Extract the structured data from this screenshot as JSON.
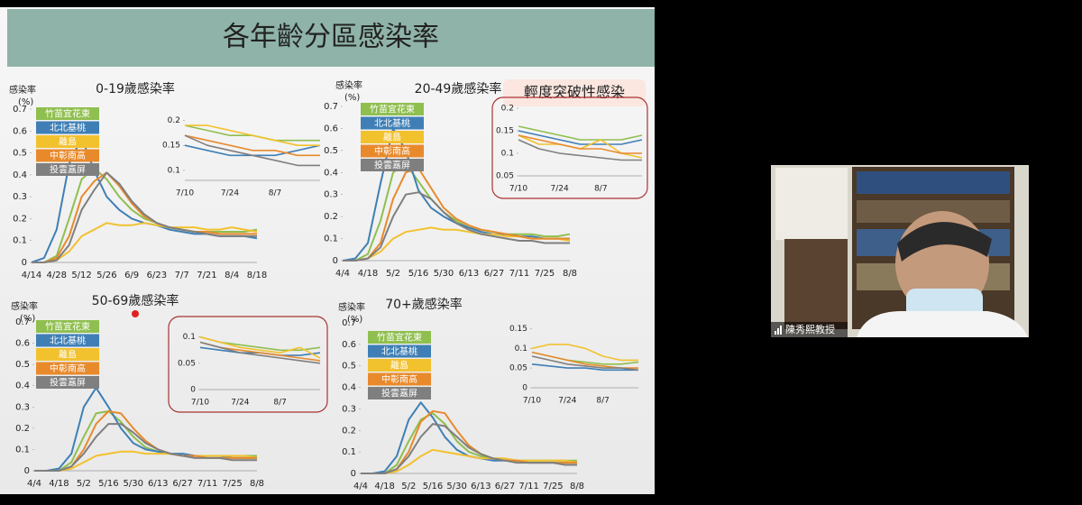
{
  "slide_title": "各年齡分區感染率",
  "callout": "輕度突破性感染",
  "participant": "陳秀熙教授",
  "chart_data": [
    {
      "type": "line",
      "title": "0-19歲感染率",
      "ylabel": "感染率",
      "yunit": "(%)",
      "categories": [
        "4/14",
        null,
        "4/28",
        null,
        "5/12",
        null,
        "5/26",
        null,
        "6/9",
        null,
        "6/23",
        null,
        "7/7",
        null,
        "7/21",
        null,
        "8/4",
        null,
        "8/18"
      ],
      "ylim": [
        0,
        0.7
      ],
      "yticks": [
        0,
        0.1,
        0.2,
        0.3,
        0.4,
        0.5,
        0.6,
        0.7
      ],
      "series": [
        {
          "name": "竹苗宜花東",
          "color": "#8fbf4f",
          "values": [
            0,
            0,
            0.03,
            0.2,
            0.38,
            0.43,
            0.38,
            0.3,
            0.24,
            0.2,
            0.18,
            0.16,
            0.15,
            0.14,
            0.14,
            0.14,
            0.14,
            0.14,
            0.15
          ]
        },
        {
          "name": "北北基桃",
          "color": "#3f7fb5",
          "values": [
            0,
            0.02,
            0.15,
            0.45,
            0.57,
            0.42,
            0.3,
            0.24,
            0.2,
            0.18,
            0.17,
            0.15,
            0.14,
            0.13,
            0.13,
            0.12,
            0.12,
            0.12,
            0.11
          ]
        },
        {
          "name": "離島",
          "color": "#f2c12e",
          "values": [
            0,
            0,
            0.01,
            0.05,
            0.12,
            0.15,
            0.18,
            0.17,
            0.17,
            0.18,
            0.17,
            0.16,
            0.16,
            0.16,
            0.15,
            0.15,
            0.16,
            0.15,
            0.14
          ]
        },
        {
          "name": "中彰南高",
          "color": "#e88a2c",
          "values": [
            0,
            0,
            0.02,
            0.12,
            0.3,
            0.37,
            0.41,
            0.35,
            0.27,
            0.21,
            0.18,
            0.16,
            0.15,
            0.14,
            0.14,
            0.13,
            0.13,
            0.13,
            0.13
          ]
        },
        {
          "name": "投雲嘉屏",
          "color": "#7f7f7f",
          "values": [
            0,
            0,
            0.01,
            0.08,
            0.24,
            0.33,
            0.41,
            0.36,
            0.28,
            0.22,
            0.18,
            0.16,
            0.15,
            0.14,
            0.13,
            0.12,
            0.12,
            0.12,
            0.12
          ]
        }
      ]
    },
    {
      "type": "line",
      "title": "20-49歲感染率",
      "ylabel": "感染率",
      "yunit": "(%)",
      "categories": [
        "4/4",
        null,
        "4/18",
        null,
        "5/2",
        null,
        "5/16",
        null,
        "5/30",
        null,
        "6/13",
        null,
        "6/27",
        null,
        "7/11",
        null,
        "7/25",
        null,
        "8/8"
      ],
      "ylim": [
        0,
        0.7
      ],
      "yticks": [
        0,
        0.1,
        0.2,
        0.3,
        0.4,
        0.5,
        0.6,
        0.7
      ],
      "series": [
        {
          "name": "竹苗宜花東",
          "color": "#8fbf4f",
          "values": [
            0,
            0,
            0.03,
            0.18,
            0.4,
            0.44,
            0.36,
            0.28,
            0.22,
            0.18,
            0.15,
            0.14,
            0.13,
            0.12,
            0.12,
            0.12,
            0.11,
            0.11,
            0.12
          ]
        },
        {
          "name": "北北基桃",
          "color": "#3f7fb5",
          "values": [
            0,
            0.01,
            0.08,
            0.35,
            0.6,
            0.5,
            0.32,
            0.24,
            0.2,
            0.17,
            0.15,
            0.13,
            0.12,
            0.12,
            0.11,
            0.11,
            0.1,
            0.1,
            0.1
          ]
        },
        {
          "name": "離島",
          "color": "#f2c12e",
          "values": [
            0,
            0,
            0.01,
            0.04,
            0.1,
            0.13,
            0.14,
            0.15,
            0.14,
            0.14,
            0.13,
            0.12,
            0.12,
            0.11,
            0.11,
            0.1,
            0.1,
            0.1,
            0.09
          ]
        },
        {
          "name": "中彰南高",
          "color": "#e88a2c",
          "values": [
            0,
            0,
            0.01,
            0.08,
            0.28,
            0.4,
            0.42,
            0.33,
            0.24,
            0.19,
            0.16,
            0.14,
            0.13,
            0.12,
            0.11,
            0.1,
            0.1,
            0.1,
            0.1
          ]
        },
        {
          "name": "投雲嘉屏",
          "color": "#7f7f7f",
          "values": [
            0,
            0,
            0.01,
            0.06,
            0.2,
            0.3,
            0.31,
            0.28,
            0.22,
            0.17,
            0.14,
            0.12,
            0.11,
            0.1,
            0.09,
            0.09,
            0.08,
            0.08,
            0.08
          ]
        }
      ]
    },
    {
      "type": "line",
      "title": "50-69歲感染率",
      "ylabel": "感染率",
      "yunit": "(%)",
      "categories": [
        "4/4",
        null,
        "4/18",
        null,
        "5/2",
        null,
        "5/16",
        null,
        "5/30",
        null,
        "6/13",
        null,
        "6/27",
        null,
        "7/11",
        null,
        "7/25",
        null,
        "8/8"
      ],
      "ylim": [
        0,
        0.7
      ],
      "yticks": [
        0,
        0.1,
        0.2,
        0.3,
        0.4,
        0.5,
        0.6,
        0.7
      ],
      "series": [
        {
          "name": "竹苗宜花東",
          "color": "#8fbf4f",
          "values": [
            0,
            0,
            0,
            0.04,
            0.16,
            0.27,
            0.28,
            0.23,
            0.16,
            0.11,
            0.09,
            0.08,
            0.07,
            0.07,
            0.07,
            0.07,
            0.07,
            0.07,
            0.07
          ]
        },
        {
          "name": "北北基桃",
          "color": "#3f7fb5",
          "values": [
            0,
            0,
            0.01,
            0.08,
            0.3,
            0.39,
            0.3,
            0.2,
            0.13,
            0.1,
            0.09,
            0.08,
            0.08,
            0.07,
            0.07,
            0.07,
            0.06,
            0.06,
            0.06
          ]
        },
        {
          "name": "離島",
          "color": "#f2c12e",
          "values": [
            0,
            0,
            0,
            0.01,
            0.04,
            0.07,
            0.08,
            0.09,
            0.09,
            0.08,
            0.08,
            0.08,
            0.07,
            0.07,
            0.07,
            0.07,
            0.07,
            0.07,
            0.06
          ]
        },
        {
          "name": "中彰南高",
          "color": "#e88a2c",
          "values": [
            0,
            0,
            0,
            0.02,
            0.1,
            0.22,
            0.28,
            0.27,
            0.2,
            0.14,
            0.1,
            0.08,
            0.07,
            0.07,
            0.06,
            0.06,
            0.06,
            0.06,
            0.06
          ]
        },
        {
          "name": "投雲嘉屏",
          "color": "#7f7f7f",
          "values": [
            0,
            0,
            0,
            0.02,
            0.08,
            0.16,
            0.22,
            0.22,
            0.18,
            0.13,
            0.1,
            0.08,
            0.07,
            0.06,
            0.06,
            0.06,
            0.05,
            0.05,
            0.05
          ]
        }
      ]
    },
    {
      "type": "line",
      "title": "70+歲感染率",
      "ylabel": "感染率",
      "yunit": "(%)",
      "categories": [
        "4/4",
        null,
        "4/18",
        null,
        "5/2",
        null,
        "5/16",
        null,
        "5/30",
        null,
        "6/13",
        null,
        "6/27",
        null,
        "7/11",
        null,
        "7/25",
        null,
        "8/8"
      ],
      "ylim": [
        0,
        0.7
      ],
      "yticks": [
        0,
        0.1,
        0.2,
        0.3,
        0.4,
        0.5,
        0.6,
        0.7
      ],
      "series": [
        {
          "name": "竹苗宜花東",
          "color": "#8fbf4f",
          "values": [
            0,
            0,
            0,
            0.04,
            0.15,
            0.25,
            0.28,
            0.23,
            0.15,
            0.1,
            0.08,
            0.07,
            0.06,
            0.06,
            0.06,
            0.06,
            0.06,
            0.06,
            0.06
          ]
        },
        {
          "name": "北北基桃",
          "color": "#3f7fb5",
          "values": [
            0,
            0,
            0.01,
            0.08,
            0.25,
            0.33,
            0.26,
            0.17,
            0.11,
            0.08,
            0.07,
            0.06,
            0.06,
            0.06,
            0.05,
            0.05,
            0.05,
            0.05,
            0.05
          ]
        },
        {
          "name": "離島",
          "color": "#f2c12e",
          "values": [
            0,
            0,
            0,
            0.01,
            0.04,
            0.08,
            0.11,
            0.1,
            0.09,
            0.08,
            0.07,
            0.07,
            0.07,
            0.06,
            0.06,
            0.06,
            0.06,
            0.06,
            0.05
          ]
        },
        {
          "name": "中彰南高",
          "color": "#e88a2c",
          "values": [
            0,
            0,
            0,
            0.02,
            0.1,
            0.24,
            0.29,
            0.28,
            0.2,
            0.13,
            0.09,
            0.07,
            0.06,
            0.06,
            0.05,
            0.05,
            0.05,
            0.05,
            0.05
          ]
        },
        {
          "name": "投雲嘉屏",
          "color": "#7f7f7f",
          "values": [
            0,
            0,
            0,
            0.02,
            0.08,
            0.17,
            0.23,
            0.22,
            0.17,
            0.12,
            0.09,
            0.07,
            0.06,
            0.05,
            0.05,
            0.05,
            0.05,
            0.04,
            0.04
          ]
        }
      ]
    },
    {
      "type": "line",
      "categories": [
        "7/10",
        null,
        "7/24",
        null,
        "8/7",
        null,
        null
      ],
      "ylim": [
        0.08,
        0.21
      ],
      "yticks": [
        0.1,
        0.15,
        0.2
      ],
      "series": [
        {
          "color": "#8fbf4f",
          "values": [
            0.19,
            0.18,
            0.17,
            0.17,
            0.16,
            0.16,
            0.16
          ]
        },
        {
          "color": "#3f7fb5",
          "values": [
            0.15,
            0.14,
            0.13,
            0.13,
            0.13,
            0.14,
            0.15
          ]
        },
        {
          "color": "#f2c12e",
          "values": [
            0.19,
            0.19,
            0.18,
            0.17,
            0.16,
            0.15,
            0.15
          ]
        },
        {
          "color": "#e88a2c",
          "values": [
            0.17,
            0.16,
            0.15,
            0.14,
            0.14,
            0.13,
            0.13
          ]
        },
        {
          "color": "#7f7f7f",
          "values": [
            0.17,
            0.15,
            0.14,
            0.13,
            0.12,
            0.11,
            0.11
          ]
        }
      ]
    },
    {
      "type": "line",
      "categories": [
        "7/10",
        null,
        "7/24",
        null,
        "8/7",
        null,
        null
      ],
      "ylim": [
        0.05,
        0.2
      ],
      "yticks": [
        0.05,
        0.1,
        0.15,
        0.2
      ],
      "series": [
        {
          "color": "#8fbf4f",
          "values": [
            0.16,
            0.15,
            0.14,
            0.13,
            0.13,
            0.13,
            0.14
          ]
        },
        {
          "color": "#3f7fb5",
          "values": [
            0.15,
            0.14,
            0.13,
            0.12,
            0.12,
            0.12,
            0.13
          ]
        },
        {
          "color": "#f2c12e",
          "values": [
            0.14,
            0.12,
            0.12,
            0.11,
            0.13,
            0.1,
            0.09
          ]
        },
        {
          "color": "#e88a2c",
          "values": [
            0.14,
            0.13,
            0.12,
            0.11,
            0.11,
            0.1,
            0.1
          ]
        },
        {
          "color": "#7f7f7f",
          "values": [
            0.13,
            0.11,
            0.1,
            0.095,
            0.09,
            0.085,
            0.085
          ]
        }
      ]
    },
    {
      "type": "line",
      "categories": [
        "7/10",
        null,
        "7/24",
        null,
        "8/7",
        null,
        null
      ],
      "ylim": [
        0,
        0.12
      ],
      "yticks": [
        0,
        0.05,
        0.1
      ],
      "series": [
        {
          "color": "#8fbf4f",
          "values": [
            0.1,
            0.09,
            0.085,
            0.08,
            0.075,
            0.075,
            0.08
          ]
        },
        {
          "color": "#3f7fb5",
          "values": [
            0.08,
            0.075,
            0.07,
            0.07,
            0.065,
            0.065,
            0.07
          ]
        },
        {
          "color": "#f2c12e",
          "values": [
            0.1,
            0.09,
            0.08,
            0.075,
            0.07,
            0.08,
            0.06
          ]
        },
        {
          "color": "#e88a2c",
          "values": [
            0.09,
            0.08,
            0.075,
            0.07,
            0.065,
            0.06,
            0.055
          ]
        },
        {
          "color": "#7f7f7f",
          "values": [
            0.09,
            0.08,
            0.07,
            0.065,
            0.06,
            0.055,
            0.05
          ]
        }
      ]
    },
    {
      "type": "line",
      "categories": [
        "7/10",
        null,
        "7/24",
        null,
        "8/7",
        null,
        null
      ],
      "ylim": [
        0,
        0.16
      ],
      "yticks": [
        0,
        0.05,
        0.1,
        0.15
      ],
      "series": [
        {
          "color": "#8fbf4f",
          "values": [
            0.09,
            0.08,
            0.07,
            0.065,
            0.06,
            0.06,
            0.065
          ]
        },
        {
          "color": "#3f7fb5",
          "values": [
            0.06,
            0.055,
            0.05,
            0.05,
            0.045,
            0.045,
            0.045
          ]
        },
        {
          "color": "#f2c12e",
          "values": [
            0.1,
            0.11,
            0.11,
            0.1,
            0.08,
            0.07,
            0.07
          ]
        },
        {
          "color": "#e88a2c",
          "values": [
            0.09,
            0.08,
            0.07,
            0.06,
            0.055,
            0.05,
            0.05
          ]
        },
        {
          "color": "#7f7f7f",
          "values": [
            0.08,
            0.07,
            0.06,
            0.055,
            0.05,
            0.05,
            0.045
          ]
        }
      ]
    }
  ]
}
